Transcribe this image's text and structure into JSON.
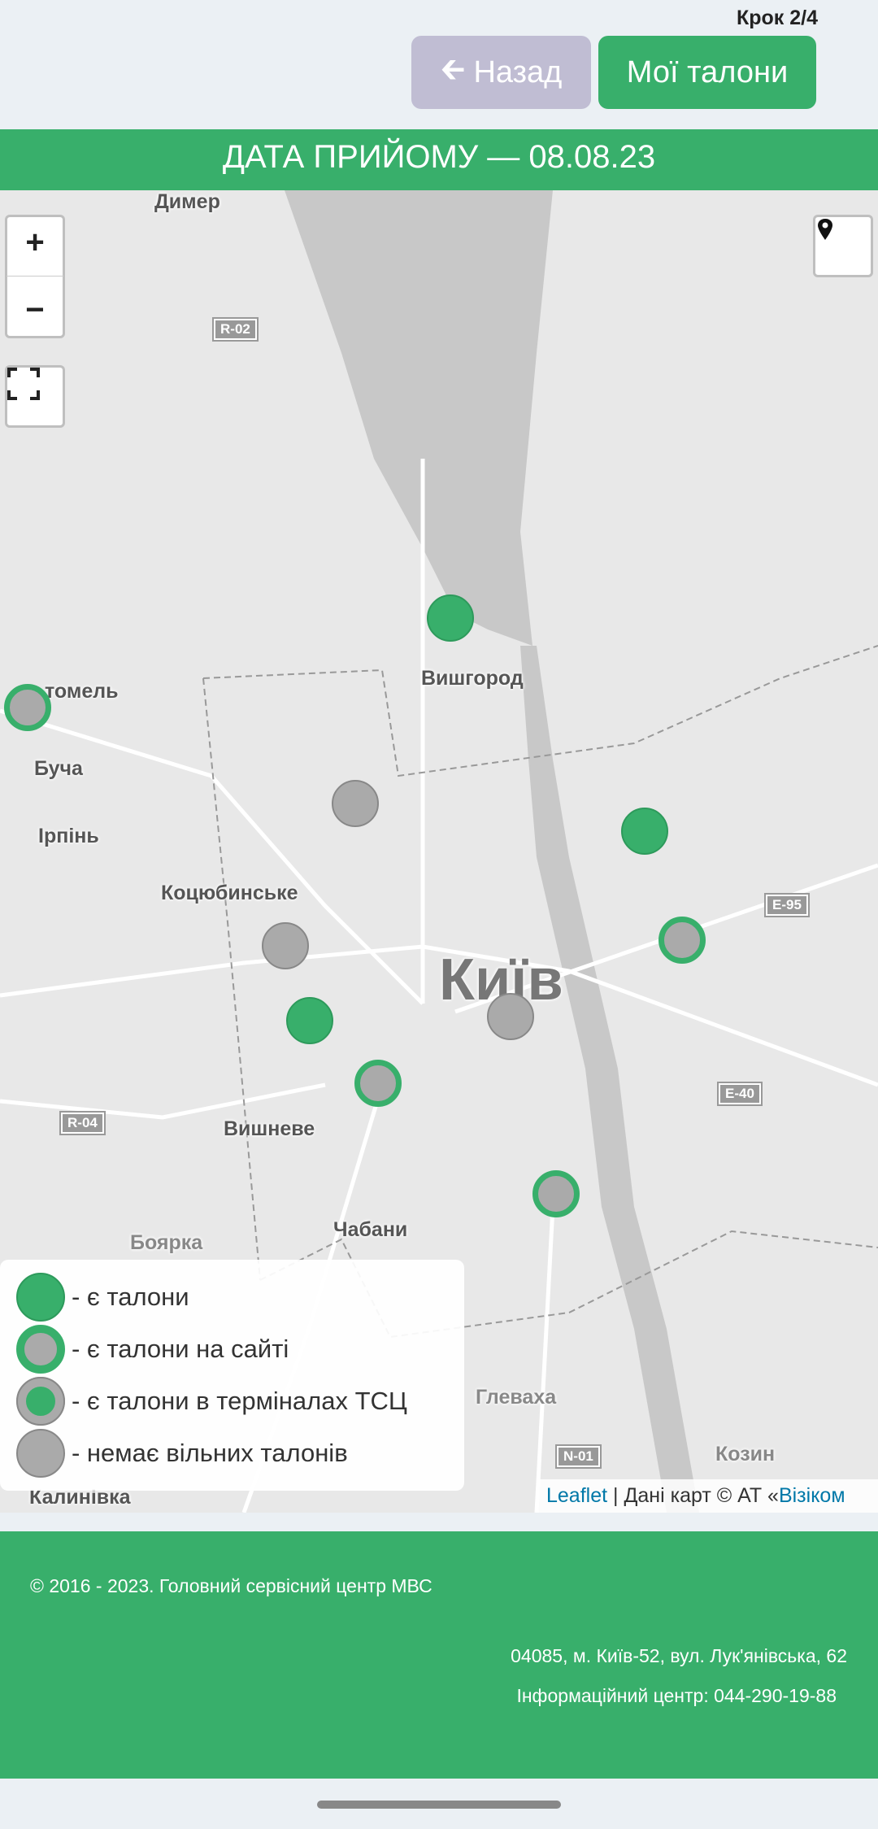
{
  "header": {
    "step": "Крок 2/4",
    "back_label": "Назад",
    "my_tickets_label": "Мої талони",
    "title": "ДАТА ПРИЙОМУ — 08.08.23"
  },
  "map": {
    "places": [
      "Димер",
      "Вишгород",
      "томель",
      "Буча",
      "Ірпінь",
      "Коцюбинське",
      "Київ",
      "Вишневе",
      "Чабани",
      "Боярка",
      "Калинівка",
      "Глеваха",
      "Козин"
    ],
    "roads": [
      "R-02",
      "E-95",
      "E-40",
      "R-04",
      "N-01"
    ],
    "controls": {
      "zoom_in": "+",
      "zoom_out": "−"
    },
    "markers": [
      "available",
      "site",
      "available",
      "available",
      "site",
      "none",
      "available",
      "none",
      "site",
      "site"
    ],
    "colors": {
      "available": "#38af6b",
      "none": "#aaaaaa"
    }
  },
  "legend": [
    {
      "type": "available",
      "label": "- є талони"
    },
    {
      "type": "site",
      "label": "- є талони на сайті"
    },
    {
      "type": "terminal",
      "label": "- є талони в терміналах ТСЦ"
    },
    {
      "type": "none",
      "label": "- немає вільних талонів"
    }
  ],
  "attribution": {
    "leaflet": "Leaflet",
    "text": " | Дані карт © АТ «",
    "provider": "Візіком"
  },
  "footer": {
    "copyright": "© 2016 - 2023. Головний сервісний центр МВС",
    "address": "04085, м. Київ-52, вул. Лук'янівська, 62",
    "info": "Інформаційний центр: 044-290-19-88"
  }
}
